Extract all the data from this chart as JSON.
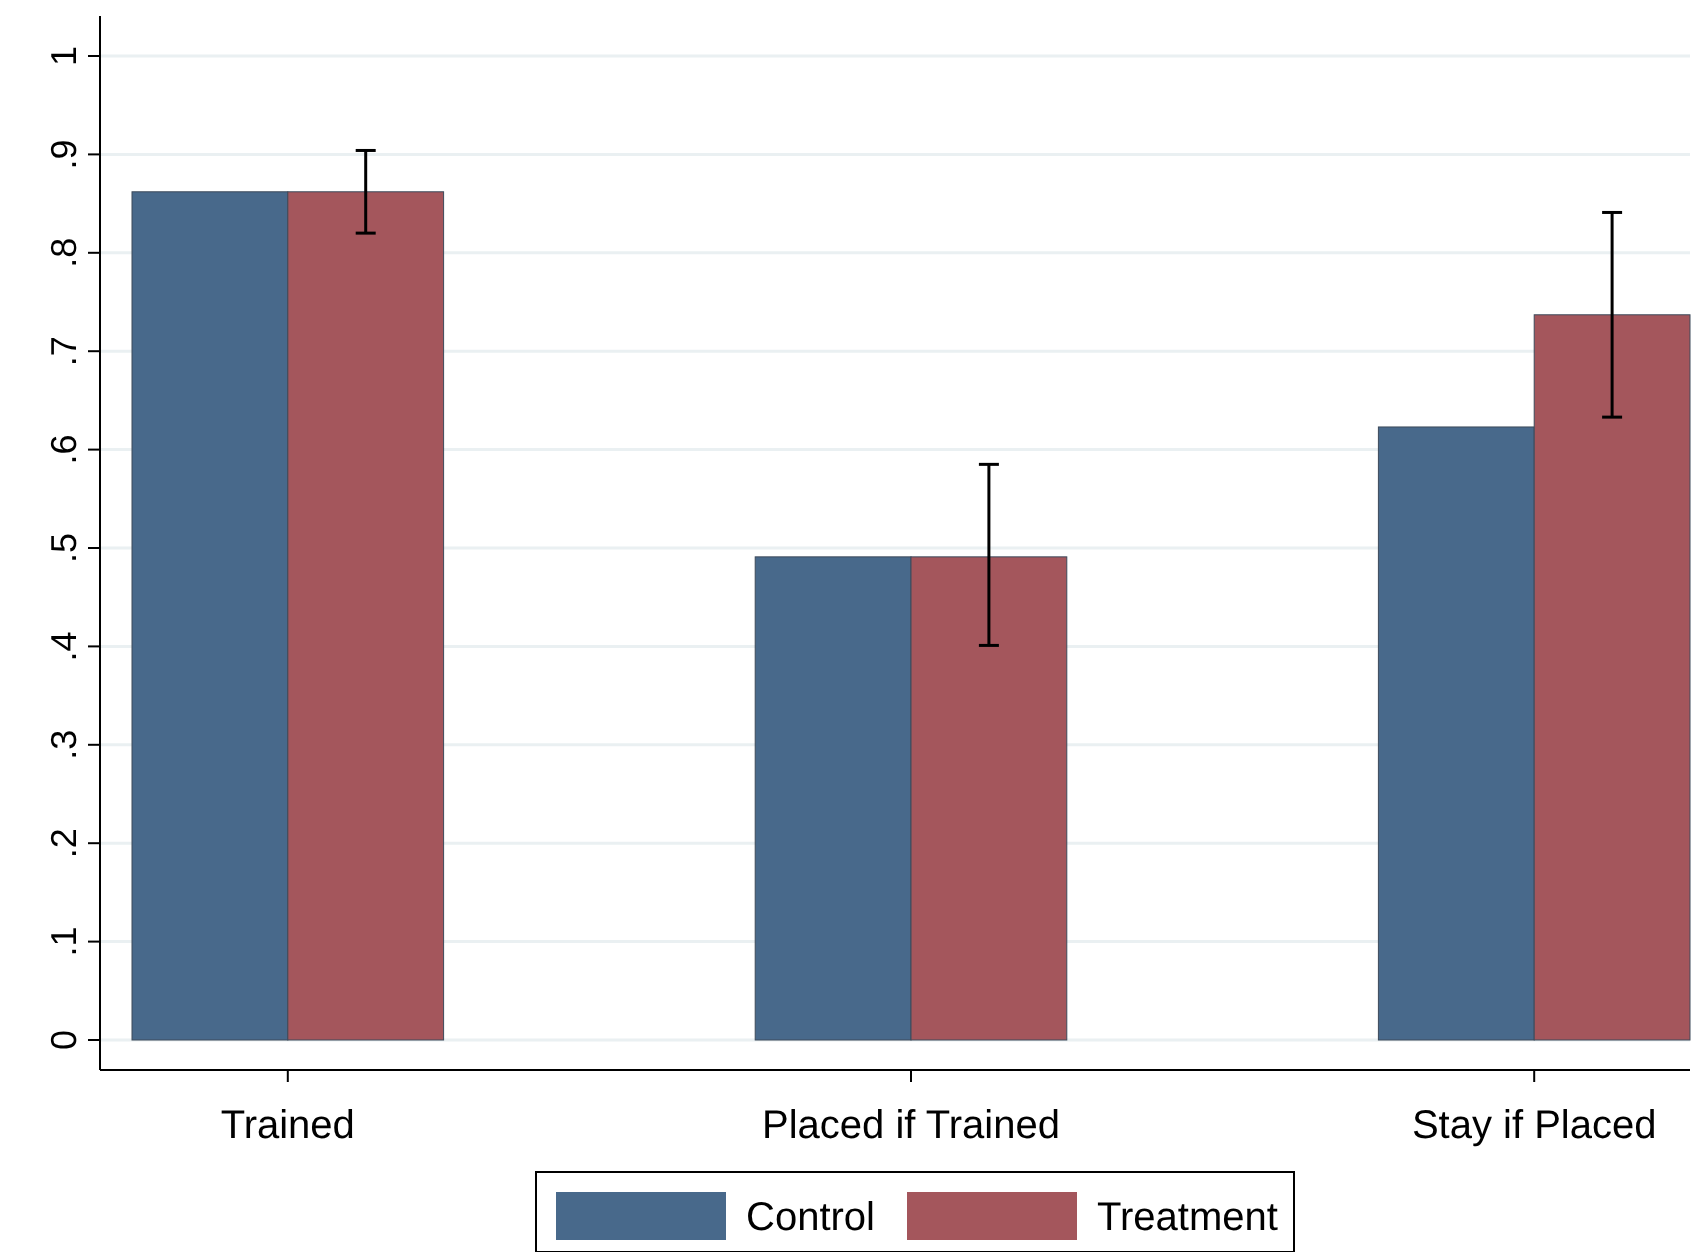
{
  "chart_data": {
    "type": "bar",
    "categories": [
      "Trained",
      "Placed if Trained",
      "Stay if Placed"
    ],
    "series": [
      {
        "name": "Control",
        "color": "#48698b",
        "values": [
          0.862,
          0.491,
          0.623
        ]
      },
      {
        "name": "Treatment",
        "color": "#a4565c",
        "values": [
          0.862,
          0.491,
          0.737
        ],
        "errors": [
          [
            0.82,
            0.904
          ],
          [
            0.401,
            0.585
          ],
          [
            0.633,
            0.841
          ]
        ]
      }
    ],
    "ylim": [
      0,
      1
    ],
    "yticks": [
      0,
      {
        "value": 0.1,
        "label": ".1"
      },
      {
        "value": 0.2,
        "label": ".2"
      },
      {
        "value": 0.3,
        "label": ".3"
      },
      {
        "value": 0.4,
        "label": ".4"
      },
      {
        "value": 0.5,
        "label": ".5"
      },
      {
        "value": 0.6,
        "label": ".6"
      },
      {
        "value": 0.7,
        "label": ".7"
      },
      {
        "value": 0.8,
        "label": ".8"
      },
      {
        "value": 0.9,
        "label": ".9"
      },
      1
    ],
    "grid": "y",
    "legend": "bottom"
  }
}
